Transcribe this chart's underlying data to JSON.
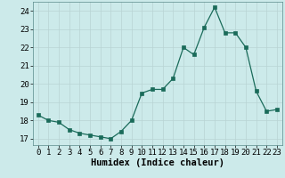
{
  "x": [
    0,
    1,
    2,
    3,
    4,
    5,
    6,
    7,
    8,
    9,
    10,
    11,
    12,
    13,
    14,
    15,
    16,
    17,
    18,
    19,
    20,
    21,
    22,
    23
  ],
  "y": [
    18.3,
    18.0,
    17.9,
    17.5,
    17.3,
    17.2,
    17.1,
    17.0,
    17.4,
    18.0,
    19.5,
    19.7,
    19.7,
    20.3,
    22.0,
    21.6,
    23.1,
    24.2,
    22.8,
    22.8,
    22.0,
    19.6,
    18.5,
    18.6
  ],
  "xlabel": "Humidex (Indice chaleur)",
  "ylim": [
    16.65,
    24.5
  ],
  "xlim": [
    -0.5,
    23.5
  ],
  "yticks": [
    17,
    18,
    19,
    20,
    21,
    22,
    23,
    24
  ],
  "xticks": [
    0,
    1,
    2,
    3,
    4,
    5,
    6,
    7,
    8,
    9,
    10,
    11,
    12,
    13,
    14,
    15,
    16,
    17,
    18,
    19,
    20,
    21,
    22,
    23
  ],
  "line_color": "#1a6b5a",
  "marker_color": "#1a6b5a",
  "bg_color": "#cceaea",
  "grid_color": "#b8d4d4",
  "label_fontsize": 7.5,
  "tick_fontsize": 6.5
}
